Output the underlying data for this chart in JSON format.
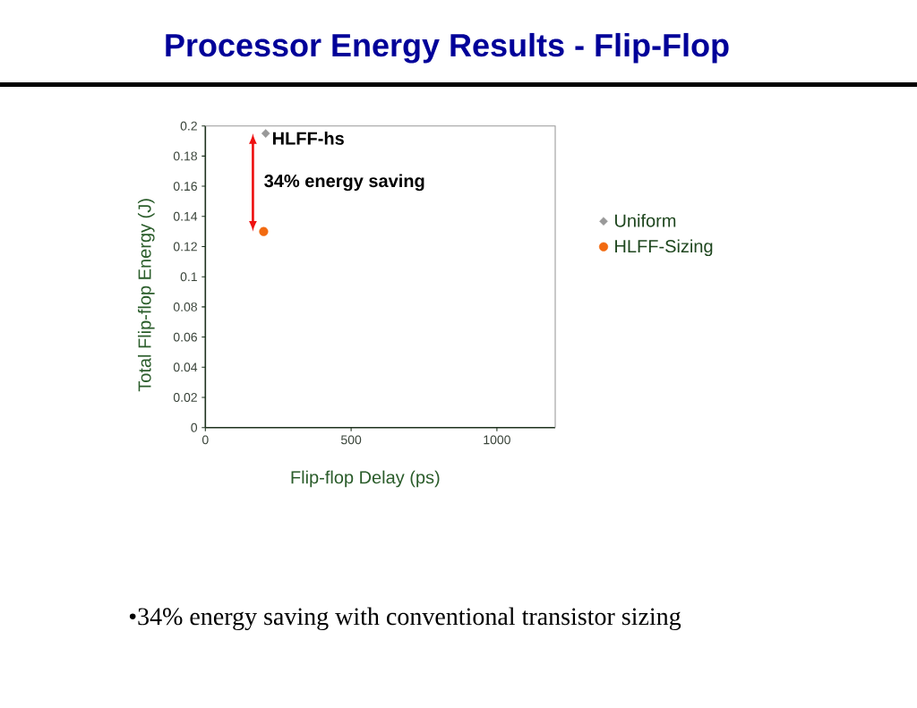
{
  "chart_data": {
    "type": "scatter",
    "title": "Processor Energy Results - Flip-Flop",
    "xlabel": "Flip-flop Delay (ps)",
    "ylabel": "Total Flip-flop Energy (J)",
    "series": [
      {
        "name": "Uniform",
        "color": "#999999",
        "marker": "diamond",
        "x": [
          207
        ],
        "values": [
          0.195
        ]
      },
      {
        "name": "HLFF-Sizing",
        "color": "#F26A10",
        "marker": "circle",
        "x": [
          200
        ],
        "values": [
          0.13
        ]
      }
    ],
    "xlim": [
      0,
      1200
    ],
    "ylim": [
      0,
      0.2
    ],
    "xticks": [
      0,
      500,
      1000
    ],
    "yticks": [
      0,
      0.02,
      0.04,
      0.06,
      0.08,
      0.1,
      0.12,
      0.14,
      0.16,
      0.18,
      0.2
    ],
    "legend": "right",
    "annotations": [
      {
        "text": "HLFF-hs",
        "x": 207,
        "y": 0.195
      },
      "34% energy saving",
      "•34% energy saving with conventional transistor sizing"
    ]
  }
}
